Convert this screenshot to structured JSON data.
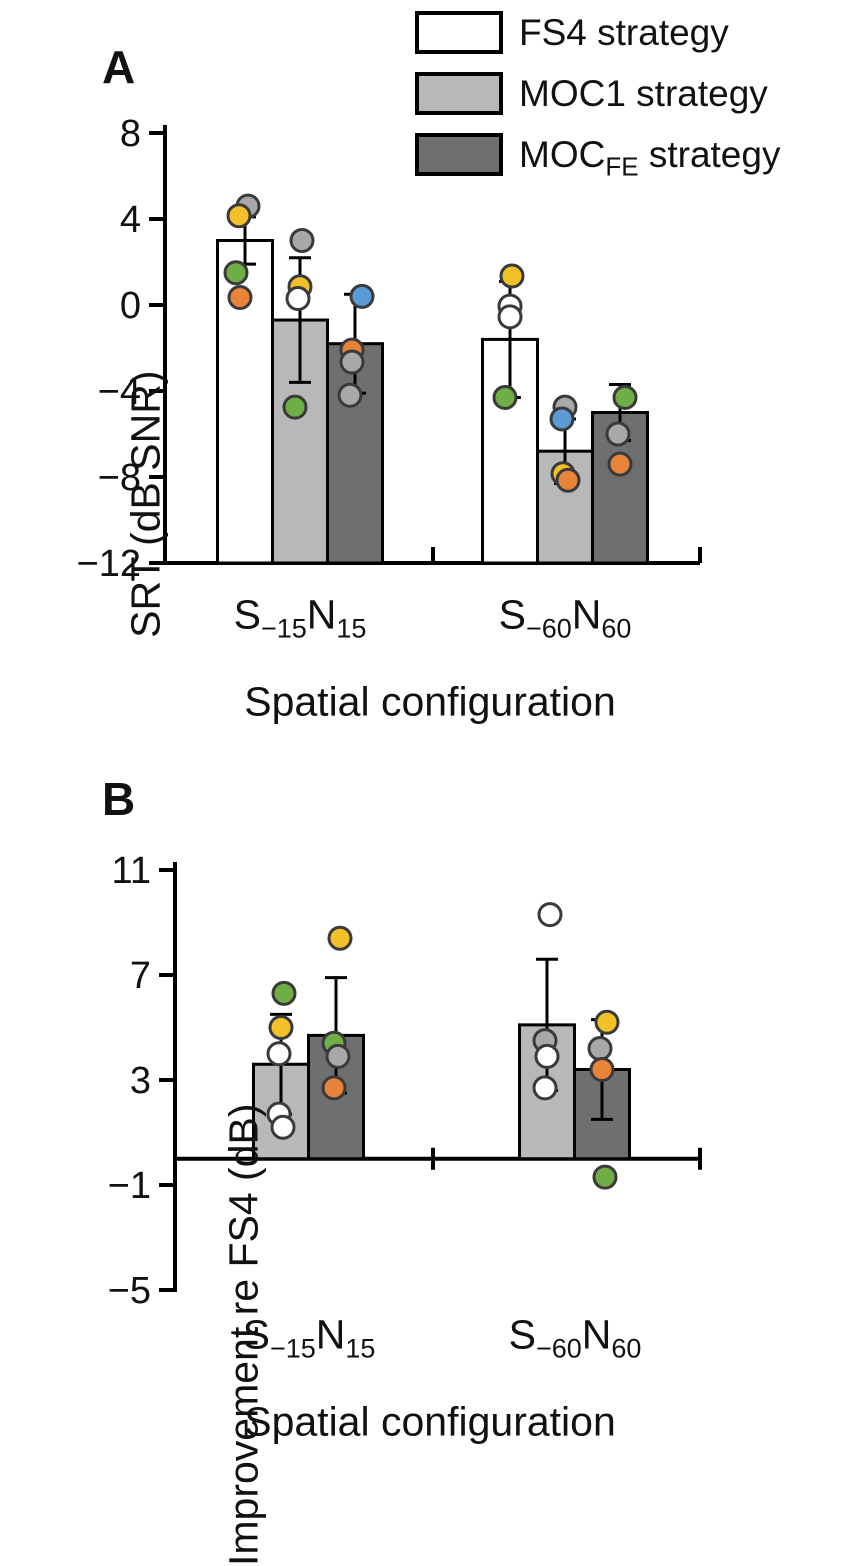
{
  "legend": {
    "items": [
      {
        "pre": "FS4 strategy",
        "sub": "",
        "post": "",
        "fill": "#ffffff"
      },
      {
        "pre": "MOC1 strategy",
        "sub": "",
        "post": "",
        "fill": "#b8b8b8"
      },
      {
        "pre": "MOC",
        "sub": "FE",
        "post": " strategy",
        "fill": "#6f6f6f"
      }
    ]
  },
  "point_colors": {
    "yellow": "#f2c029",
    "green": "#6fae44",
    "orange": "#e8833a",
    "blue": "#5b9bd5",
    "gray": "#a8a8a8",
    "open": "#ffffff"
  },
  "chart_data": [
    {
      "type": "bar",
      "panel": "A",
      "panel_label": "A",
      "ylabel": "SRT (dB SNR)",
      "xlabel": "Spatial configuration",
      "ylim": [
        -12,
        8
      ],
      "bar_base": -12,
      "grid": false,
      "legend_position": "top-right",
      "yticks": [
        {
          "v": 8,
          "label": "8"
        },
        {
          "v": 4,
          "label": "4"
        },
        {
          "v": 0,
          "label": "0"
        },
        {
          "v": -4,
          "label": "−4"
        },
        {
          "v": -8,
          "label": "−8"
        },
        {
          "v": -12,
          "label": "−12"
        }
      ],
      "categories": [
        {
          "pre": "S",
          "sub1": "−15",
          "mid": "N",
          "sub2": "15"
        },
        {
          "pre": "S",
          "sub1": "−60",
          "mid": "N",
          "sub2": "60"
        }
      ],
      "series": [
        {
          "name": "FS4 strategy",
          "fill": "#ffffff",
          "values": [
            3.0,
            -1.6
          ],
          "errors": [
            1.1,
            2.7
          ],
          "points": [
            [
              {
                "dx": 3,
                "v": 4.6,
                "c": "gray"
              },
              {
                "dx": -6,
                "v": 4.15,
                "c": "yellow"
              },
              {
                "dx": -9,
                "v": 1.5,
                "c": "green"
              },
              {
                "dx": -5,
                "v": 0.35,
                "c": "orange"
              }
            ],
            [
              {
                "dx": 2,
                "v": 1.35,
                "c": "yellow"
              },
              {
                "dx": 0,
                "v": -0.05,
                "c": "open"
              },
              {
                "dx": 0,
                "v": -0.55,
                "c": "open"
              },
              {
                "dx": -5,
                "v": -4.3,
                "c": "green"
              }
            ]
          ]
        },
        {
          "name": "MOC1 strategy",
          "fill": "#b8b8b8",
          "values": [
            -0.7,
            -6.8
          ],
          "errors": [
            2.9,
            1.5
          ],
          "points": [
            [
              {
                "dx": 2,
                "v": 3.0,
                "c": "gray"
              },
              {
                "dx": 0,
                "v": 0.85,
                "c": "yellow"
              },
              {
                "dx": -2,
                "v": 0.3,
                "c": "open"
              },
              {
                "dx": -5,
                "v": -4.75,
                "c": "green"
              }
            ],
            [
              {
                "dx": 0,
                "v": -4.75,
                "c": "gray"
              },
              {
                "dx": -3,
                "v": -5.3,
                "c": "blue"
              },
              {
                "dx": -2,
                "v": -7.85,
                "c": "yellow"
              },
              {
                "dx": 3,
                "v": -8.15,
                "c": "orange"
              }
            ]
          ]
        },
        {
          "name": "MOCFE strategy",
          "fill": "#6f6f6f",
          "values": [
            -1.8,
            -5.0
          ],
          "errors": [
            2.3,
            1.3
          ],
          "points": [
            [
              {
                "dx": 7,
                "v": 0.4,
                "c": "blue"
              },
              {
                "dx": -3,
                "v": -2.1,
                "c": "orange"
              },
              {
                "dx": -3,
                "v": -2.65,
                "c": "gray"
              },
              {
                "dx": -5,
                "v": -4.2,
                "c": "gray"
              }
            ],
            [
              {
                "dx": 5,
                "v": -4.3,
                "c": "green"
              },
              {
                "dx": -2,
                "v": -6.0,
                "c": "gray"
              },
              {
                "dx": 0,
                "v": -7.4,
                "c": "orange"
              }
            ]
          ]
        }
      ]
    },
    {
      "type": "bar",
      "panel": "B",
      "panel_label": "B",
      "ylabel": "Improvement re FS4 (dB)",
      "xlabel": "Spatial configuration",
      "ylim": [
        -5,
        11
      ],
      "bar_base": 0,
      "grid": false,
      "yticks": [
        {
          "v": 11,
          "label": "11"
        },
        {
          "v": 7,
          "label": "7"
        },
        {
          "v": 3,
          "label": "3"
        },
        {
          "v": -1,
          "label": "−1"
        },
        {
          "v": -5,
          "label": "−5"
        }
      ],
      "categories": [
        {
          "pre": "S",
          "sub1": "−15",
          "mid": "N",
          "sub2": "15"
        },
        {
          "pre": "S",
          "sub1": "−60",
          "mid": "N",
          "sub2": "60"
        }
      ],
      "series": [
        {
          "name": "MOC1 strategy",
          "fill": "#b8b8b8",
          "values": [
            3.6,
            5.1
          ],
          "errors": [
            1.9,
            2.5
          ],
          "points": [
            [
              {
                "dx": 3,
                "v": 6.3,
                "c": "green"
              },
              {
                "dx": 0,
                "v": 5.0,
                "c": "yellow"
              },
              {
                "dx": -2,
                "v": 4.0,
                "c": "open"
              },
              {
                "dx": -2,
                "v": 1.7,
                "c": "open"
              },
              {
                "dx": 2,
                "v": 1.2,
                "c": "open"
              }
            ],
            [
              {
                "dx": 3,
                "v": 9.3,
                "c": "open"
              },
              {
                "dx": -2,
                "v": 4.5,
                "c": "gray"
              },
              {
                "dx": 0,
                "v": 3.9,
                "c": "open"
              },
              {
                "dx": -2,
                "v": 2.7,
                "c": "open"
              }
            ]
          ]
        },
        {
          "name": "MOCFE strategy",
          "fill": "#6f6f6f",
          "values": [
            4.7,
            3.4
          ],
          "errors": [
            2.2,
            1.9
          ],
          "points": [
            [
              {
                "dx": 4,
                "v": 8.4,
                "c": "yellow"
              },
              {
                "dx": -2,
                "v": 4.4,
                "c": "green"
              },
              {
                "dx": 2,
                "v": 3.9,
                "c": "gray"
              },
              {
                "dx": -2,
                "v": 2.7,
                "c": "orange"
              }
            ],
            [
              {
                "dx": 5,
                "v": 5.2,
                "c": "yellow"
              },
              {
                "dx": -2,
                "v": 4.2,
                "c": "gray"
              },
              {
                "dx": 0,
                "v": 3.4,
                "c": "orange"
              },
              {
                "dx": 3,
                "v": -0.7,
                "c": "green"
              }
            ]
          ]
        }
      ]
    }
  ]
}
